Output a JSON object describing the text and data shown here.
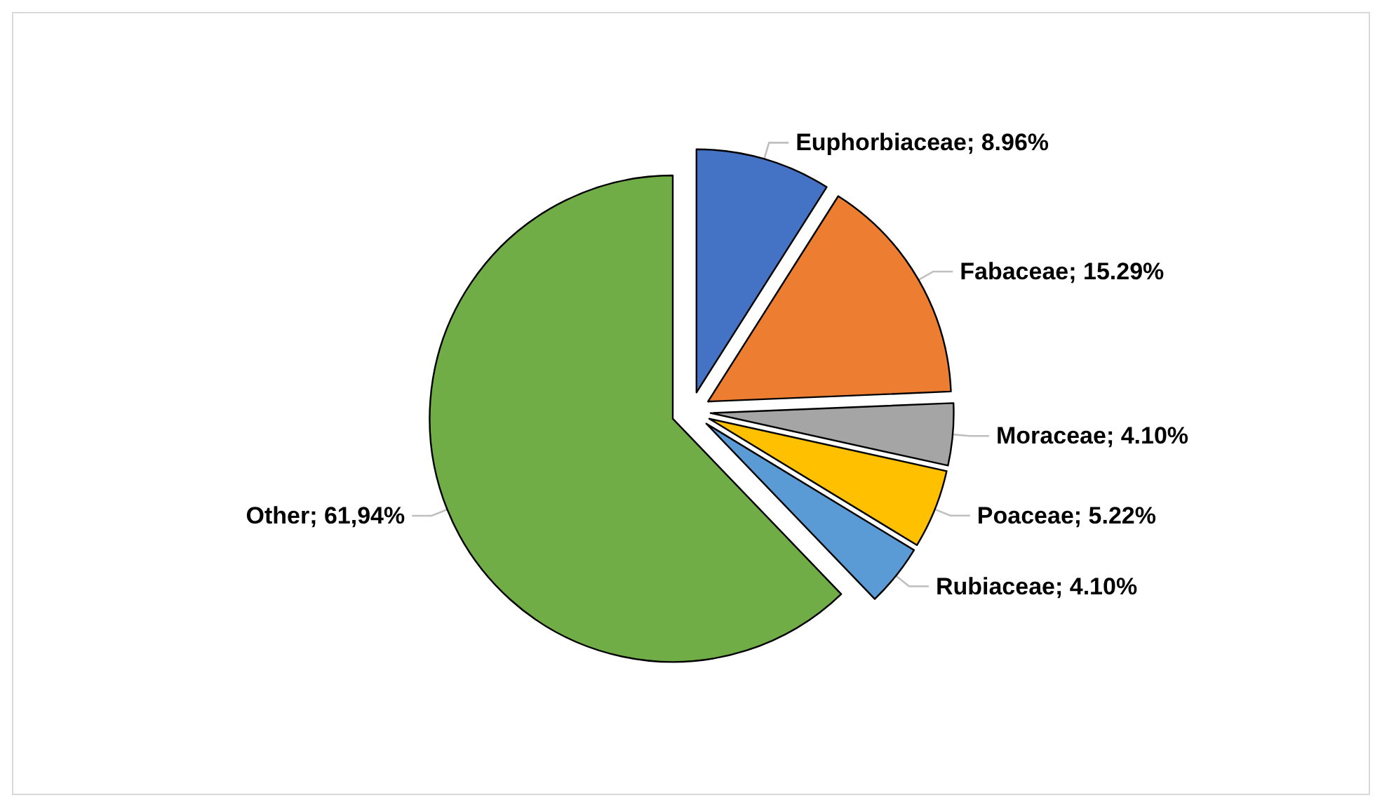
{
  "chart_data": {
    "type": "pie",
    "categories": [
      "Euphorbiaceae",
      "Fabaceae",
      "Moraceae",
      "Poaceae",
      "Rubiaceae",
      "Other"
    ],
    "values": [
      8.96,
      15.29,
      4.1,
      5.22,
      4.1,
      61.94
    ],
    "value_labels": [
      "8.96%",
      "15.29%",
      "4.10%",
      "5.22%",
      "4.10%",
      "61,94%"
    ],
    "colors": [
      "#4472c4",
      "#ed7d31",
      "#a5a5a5",
      "#ffc000",
      "#5b9bd5",
      "#70ad47"
    ],
    "legend": false
  }
}
